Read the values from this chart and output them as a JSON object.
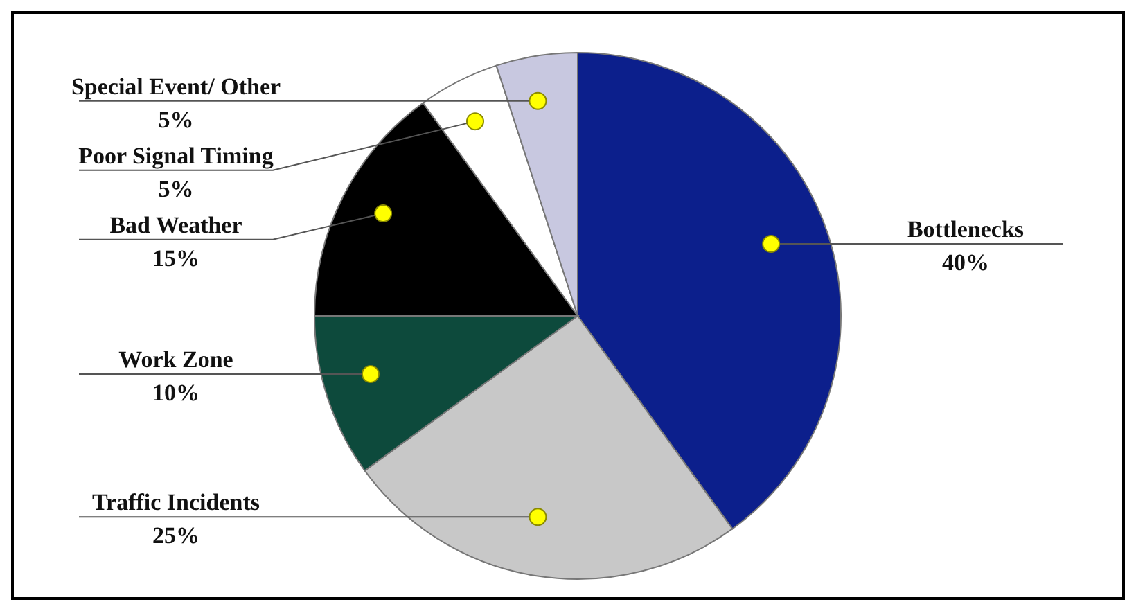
{
  "chart_data": {
    "type": "pie",
    "categories": [
      "Bottlenecks",
      "Traffic Incidents",
      "Work Zone",
      "Bad Weather",
      "Poor Signal Timing",
      "Special Event/ Other"
    ],
    "values": [
      40,
      25,
      10,
      15,
      5,
      5
    ],
    "value_labels": [
      "40%",
      "25%",
      "10%",
      "15%",
      "5%",
      "5%"
    ],
    "colors": [
      "#0c1f8c",
      "#c8c8c8",
      "#0d4a3c",
      "#000000",
      "#ffffff",
      "#c8c8e0"
    ],
    "legend": false
  }
}
